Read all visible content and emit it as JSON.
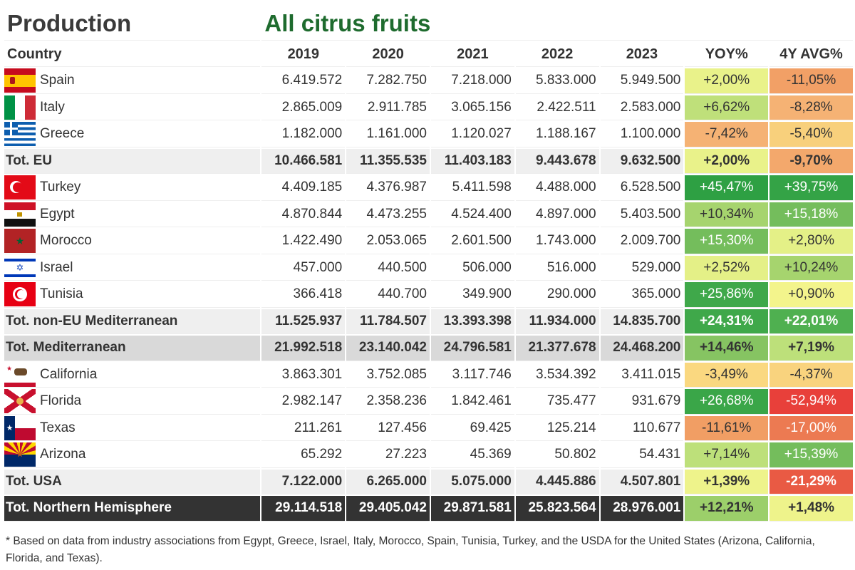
{
  "title": "Production",
  "subtitle": "All citrus fruits",
  "columns": [
    "Country",
    "2019",
    "2020",
    "2021",
    "2022",
    "2023",
    "YOY%",
    "4Y AVG%"
  ],
  "rows": [
    {
      "name": "Spain",
      "kind": "country",
      "flag": "spain",
      "values": [
        "6.419.572",
        "7.282.750",
        "7.218.000",
        "5.833.000",
        "5.949.500"
      ],
      "yoy": "+2,00%",
      "yoy_bg": "#e9f28a",
      "yoy_fg": "#333",
      "avg": "-11,05%",
      "avg_bg": "#f2a066",
      "avg_fg": "#333"
    },
    {
      "name": "Italy",
      "kind": "country",
      "flag": "italy",
      "values": [
        "2.865.009",
        "2.911.785",
        "3.065.156",
        "2.422.511",
        "2.583.000"
      ],
      "yoy": "+6,62%",
      "yoy_bg": "#bfe07a",
      "yoy_fg": "#333",
      "avg": "-8,28%",
      "avg_bg": "#f5b274",
      "avg_fg": "#333"
    },
    {
      "name": "Greece",
      "kind": "country",
      "flag": "greece",
      "values": [
        "1.182.000",
        "1.161.000",
        "1.120.027",
        "1.188.167",
        "1.100.000"
      ],
      "yoy": "-7,42%",
      "yoy_bg": "#f5b274",
      "yoy_fg": "#333",
      "avg": "-5,40%",
      "avg_bg": "#f8d07c",
      "avg_fg": "#333"
    },
    {
      "name": "Tot. EU",
      "kind": "total",
      "values": [
        "10.466.581",
        "11.355.535",
        "11.403.183",
        "9.443.678",
        "9.632.500"
      ],
      "yoy": "+2,00%",
      "yoy_bg": "#e9f28a",
      "yoy_fg": "#333",
      "avg": "-9,70%",
      "avg_bg": "#f3a86c",
      "avg_fg": "#333"
    },
    {
      "name": "Turkey",
      "kind": "country",
      "flag": "turkey",
      "values": [
        "4.409.185",
        "4.376.987",
        "5.411.598",
        "4.488.000",
        "6.528.500"
      ],
      "yoy": "+45,47%",
      "yoy_bg": "#2ea043",
      "yoy_fg": "#fff",
      "avg": "+39,75%",
      "avg_bg": "#34a346",
      "avg_fg": "#fff"
    },
    {
      "name": "Egypt",
      "kind": "country",
      "flag": "egypt",
      "values": [
        "4.870.844",
        "4.473.255",
        "4.524.400",
        "4.897.000",
        "5.403.500"
      ],
      "yoy": "+10,34%",
      "yoy_bg": "#a6d46e",
      "yoy_fg": "#333",
      "avg": "+15,18%",
      "avg_bg": "#74bd5c",
      "avg_fg": "#fff"
    },
    {
      "name": "Morocco",
      "kind": "country",
      "flag": "morocco",
      "values": [
        "1.422.490",
        "2.053.065",
        "2.601.500",
        "1.743.000",
        "2.009.700"
      ],
      "yoy": "+15,30%",
      "yoy_bg": "#74bd5c",
      "yoy_fg": "#fff",
      "avg": "+2,80%",
      "avg_bg": "#e4f087",
      "avg_fg": "#333"
    },
    {
      "name": "Israel",
      "kind": "country",
      "flag": "israel",
      "values": [
        "457.000",
        "440.500",
        "506.000",
        "516.000",
        "529.000"
      ],
      "yoy": "+2,52%",
      "yoy_bg": "#e4f087",
      "yoy_fg": "#333",
      "avg": "+10,24%",
      "avg_bg": "#a6d46e",
      "avg_fg": "#333"
    },
    {
      "name": "Tunisia",
      "kind": "country",
      "flag": "tunisia",
      "values": [
        "366.418",
        "440.700",
        "349.900",
        "290.000",
        "365.000"
      ],
      "yoy": "+25,86%",
      "yoy_bg": "#3fa84a",
      "yoy_fg": "#fff",
      "avg": "+0,90%",
      "avg_bg": "#f3f48c",
      "avg_fg": "#333"
    },
    {
      "name": "Tot. non-EU Mediterranean",
      "kind": "total",
      "values": [
        "11.525.937",
        "11.784.507",
        "13.393.398",
        "11.934.000",
        "14.835.700"
      ],
      "yoy": "+24,31%",
      "yoy_bg": "#3fa84a",
      "yoy_fg": "#fff",
      "avg": "+22,01%",
      "avg_bg": "#4fb050",
      "avg_fg": "#fff"
    },
    {
      "name": "Tot. Mediterranean",
      "kind": "med",
      "values": [
        "21.992.518",
        "23.140.042",
        "24.796.581",
        "21.377.678",
        "24.468.200"
      ],
      "yoy": "+14,46%",
      "yoy_bg": "#86c462",
      "yoy_fg": "#333",
      "avg": "+7,19%",
      "avg_bg": "#bde07a",
      "avg_fg": "#333"
    },
    {
      "name": "California",
      "kind": "country",
      "flag": "california",
      "values": [
        "3.863.301",
        "3.752.085",
        "3.117.746",
        "3.534.392",
        "3.411.015"
      ],
      "yoy": "-3,49%",
      "yoy_bg": "#fad880",
      "yoy_fg": "#333",
      "avg": "-4,37%",
      "avg_bg": "#f9d37e",
      "avg_fg": "#333"
    },
    {
      "name": "Florida",
      "kind": "country",
      "flag": "florida",
      "values": [
        "2.982.147",
        "2.358.236",
        "1.842.461",
        "735.477",
        "931.679"
      ],
      "yoy": "+26,68%",
      "yoy_bg": "#3aa648",
      "yoy_fg": "#fff",
      "avg": "-52,94%",
      "avg_bg": "#e8403a",
      "avg_fg": "#fff"
    },
    {
      "name": "Texas",
      "kind": "country",
      "flag": "texas",
      "values": [
        "211.261",
        "127.456",
        "69.425",
        "125.214",
        "110.677"
      ],
      "yoy": "-11,61%",
      "yoy_bg": "#f19e64",
      "yoy_fg": "#333",
      "avg": "-17,00%",
      "avg_bg": "#ec7a52",
      "avg_fg": "#fff"
    },
    {
      "name": "Arizona",
      "kind": "country",
      "flag": "arizona",
      "values": [
        "65.292",
        "27.223",
        "45.369",
        "50.802",
        "54.431"
      ],
      "yoy": "+7,14%",
      "yoy_bg": "#bde07a",
      "yoy_fg": "#333",
      "avg": "+15,39%",
      "avg_bg": "#74bd5c",
      "avg_fg": "#fff"
    },
    {
      "name": "Tot. USA",
      "kind": "total",
      "values": [
        "7.122.000",
        "6.265.000",
        "5.075.000",
        "4.445.886",
        "4.507.801"
      ],
      "yoy": "+1,39%",
      "yoy_bg": "#eef38b",
      "yoy_fg": "#333",
      "avg": "-21,29%",
      "avg_bg": "#e95a44",
      "avg_fg": "#fff"
    },
    {
      "name": "Tot. Northern Hemisphere",
      "kind": "north",
      "values": [
        "29.114.518",
        "29.405.042",
        "29.871.581",
        "25.823.564",
        "28.976.001"
      ],
      "yoy": "+12,21%",
      "yoy_bg": "#9ccf6a",
      "yoy_fg": "#333",
      "avg": "+1,48%",
      "avg_bg": "#eef38b",
      "avg_fg": "#333"
    }
  ],
  "footnote": "* Based on data from industry associations from Egypt, Greece, Israel, Italy, Morocco, Spain, Tunisia, Turkey, and the USDA for the United States (Arizona, California, Florida, and Texas)."
}
